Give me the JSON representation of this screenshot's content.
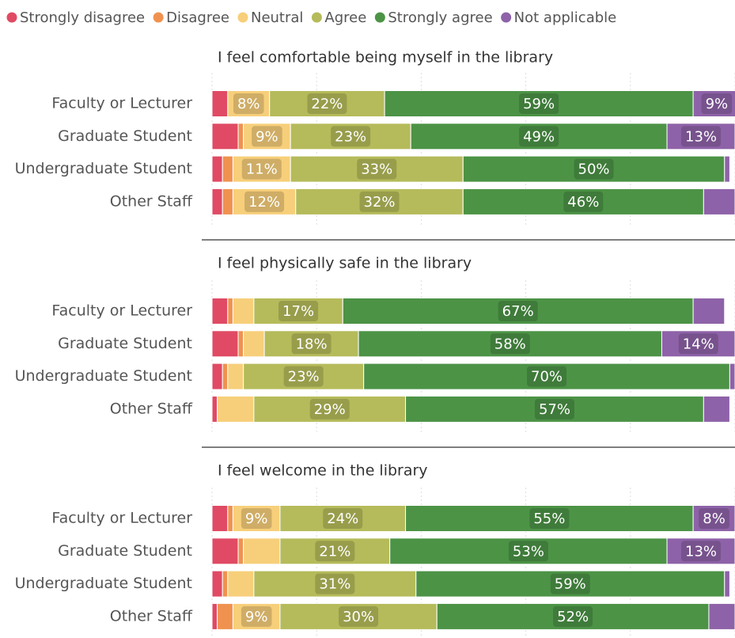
{
  "chart_data": [
    {
      "type": "bar",
      "orientation": "horizontal",
      "stacked": true,
      "title": "I feel comfortable being myself in the library",
      "categories": [
        "Faculty or Lecturer",
        "Graduate Student",
        "Undergraduate Student",
        "Other Staff"
      ],
      "xlim": [
        0,
        100
      ],
      "xticks": [
        0,
        20,
        40,
        60,
        80,
        100
      ],
      "grid": true,
      "legend": "top",
      "series": [
        {
          "name": "Strongly disagree",
          "color": "#e04a64",
          "values": [
            3,
            5,
            2,
            2
          ],
          "value_labels": [
            null,
            null,
            null,
            null
          ]
        },
        {
          "name": "Disagree",
          "color": "#f0924f",
          "values": [
            0,
            1,
            2,
            2
          ],
          "value_labels": [
            null,
            null,
            null,
            null
          ]
        },
        {
          "name": "Neutral",
          "color": "#f7cf7a",
          "values": [
            8,
            9,
            11,
            12
          ],
          "value_labels": [
            "8%",
            "9%",
            "11%",
            "12%"
          ]
        },
        {
          "name": "Agree",
          "color": "#b5bb5a",
          "values": [
            22,
            23,
            33,
            32
          ],
          "value_labels": [
            "22%",
            "23%",
            "33%",
            "32%"
          ]
        },
        {
          "name": "Strongly agree",
          "color": "#4c9346",
          "values": [
            59,
            49,
            50,
            46
          ],
          "value_labels": [
            "59%",
            "49%",
            "50%",
            "46%"
          ]
        },
        {
          "name": "Not applicable",
          "color": "#8e62a8",
          "values": [
            9,
            13,
            1,
            6
          ],
          "value_labels": [
            "9%",
            "13%",
            null,
            null
          ]
        }
      ]
    },
    {
      "type": "bar",
      "orientation": "horizontal",
      "stacked": true,
      "title": "I feel physically safe in the library",
      "categories": [
        "Faculty or Lecturer",
        "Graduate Student",
        "Undergraduate Student",
        "Other Staff"
      ],
      "xlim": [
        0,
        100
      ],
      "xticks": [
        0,
        20,
        40,
        60,
        80,
        100
      ],
      "grid": true,
      "series": [
        {
          "name": "Strongly disagree",
          "color": "#e04a64",
          "values": [
            3,
            5,
            2,
            1
          ],
          "value_labels": [
            null,
            null,
            null,
            null
          ]
        },
        {
          "name": "Disagree",
          "color": "#f0924f",
          "values": [
            1,
            1,
            1,
            0
          ],
          "value_labels": [
            null,
            null,
            null,
            null
          ]
        },
        {
          "name": "Neutral",
          "color": "#f7cf7a",
          "values": [
            4,
            4,
            3,
            7
          ],
          "value_labels": [
            null,
            null,
            null,
            null
          ]
        },
        {
          "name": "Agree",
          "color": "#b5bb5a",
          "values": [
            17,
            18,
            23,
            29
          ],
          "value_labels": [
            "17%",
            "18%",
            "23%",
            "29%"
          ]
        },
        {
          "name": "Strongly agree",
          "color": "#4c9346",
          "values": [
            67,
            58,
            70,
            57
          ],
          "value_labels": [
            "67%",
            "58%",
            "70%",
            "57%"
          ]
        },
        {
          "name": "Not applicable",
          "color": "#8e62a8",
          "values": [
            6,
            14,
            1,
            5
          ],
          "value_labels": [
            null,
            "14%",
            null,
            null
          ]
        }
      ]
    },
    {
      "type": "bar",
      "orientation": "horizontal",
      "stacked": true,
      "title": "I feel welcome in the library",
      "categories": [
        "Faculty or Lecturer",
        "Graduate Student",
        "Undergraduate Student",
        "Other Staff"
      ],
      "xlim": [
        0,
        100
      ],
      "xticks": [
        0,
        20,
        40,
        60,
        80,
        100
      ],
      "grid": true,
      "series": [
        {
          "name": "Strongly disagree",
          "color": "#e04a64",
          "values": [
            3,
            5,
            2,
            1
          ],
          "value_labels": [
            null,
            null,
            null,
            null
          ]
        },
        {
          "name": "Disagree",
          "color": "#f0924f",
          "values": [
            1,
            1,
            1,
            3
          ],
          "value_labels": [
            null,
            null,
            null,
            null
          ]
        },
        {
          "name": "Neutral",
          "color": "#f7cf7a",
          "values": [
            9,
            7,
            5,
            9
          ],
          "value_labels": [
            "9%",
            null,
            null,
            "9%"
          ]
        },
        {
          "name": "Agree",
          "color": "#b5bb5a",
          "values": [
            24,
            21,
            31,
            30
          ],
          "value_labels": [
            "24%",
            "21%",
            "31%",
            "30%"
          ]
        },
        {
          "name": "Strongly agree",
          "color": "#4c9346",
          "values": [
            55,
            53,
            59,
            52
          ],
          "value_labels": [
            "55%",
            "53%",
            "59%",
            "52%"
          ]
        },
        {
          "name": "Not applicable",
          "color": "#8e62a8",
          "values": [
            8,
            13,
            1,
            5
          ],
          "value_labels": [
            "8%",
            "13%",
            null,
            null
          ]
        }
      ]
    }
  ]
}
